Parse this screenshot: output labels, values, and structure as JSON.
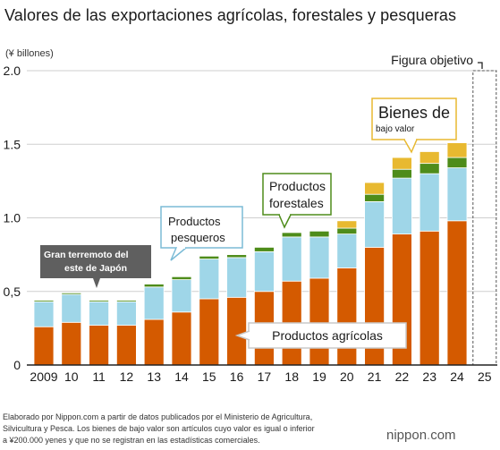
{
  "title": "Valores de las exportaciones agrícolas, forestales y pesqueras",
  "colors": {
    "agricultural": "#d45a00",
    "fishery": "#9fd6e8",
    "forestry": "#4e8c1a",
    "low_value": "#e8b930"
  },
  "chart_data": {
    "type": "bar",
    "stacked": true,
    "unit_label": "(¥ billones)",
    "categories": [
      "2009",
      "10",
      "11",
      "12",
      "13",
      "14",
      "15",
      "16",
      "17",
      "18",
      "19",
      "20",
      "21",
      "22",
      "23",
      "24",
      "25"
    ],
    "ylim": [
      0,
      2.0
    ],
    "yticks": [
      {
        "value": 0,
        "label": "0"
      },
      {
        "value": 0.5,
        "label": "0,5"
      },
      {
        "value": 1.0,
        "label": "1.0"
      },
      {
        "value": 1.5,
        "label": "1.5"
      },
      {
        "value": 2.0,
        "label": "2.0"
      }
    ],
    "series": [
      {
        "name": "Productos agrícolas",
        "color_key": "agricultural",
        "values": [
          0.26,
          0.29,
          0.27,
          0.27,
          0.31,
          0.36,
          0.45,
          0.46,
          0.5,
          0.57,
          0.59,
          0.66,
          0.8,
          0.89,
          0.91,
          0.98,
          null
        ]
      },
      {
        "name": "Productos pesqueros",
        "color_key": "fishery",
        "values": [
          0.17,
          0.19,
          0.16,
          0.16,
          0.22,
          0.22,
          0.27,
          0.27,
          0.27,
          0.3,
          0.28,
          0.23,
          0.31,
          0.38,
          0.39,
          0.36,
          null
        ]
      },
      {
        "name": "Productos forestales",
        "color_key": "forestry",
        "values": [
          0.01,
          0.01,
          0.01,
          0.01,
          0.02,
          0.02,
          0.02,
          0.02,
          0.03,
          0.03,
          0.04,
          0.04,
          0.05,
          0.06,
          0.07,
          0.07,
          null
        ]
      },
      {
        "name": "Bienes de bajo valor",
        "color_key": "low_value",
        "values": [
          0,
          0,
          0,
          0,
          0,
          0,
          0,
          0,
          0,
          0,
          0,
          0.05,
          0.08,
          0.08,
          0.08,
          0.1,
          null
        ]
      }
    ],
    "target": {
      "category": "25",
      "value": 2.0,
      "label": "Figura objetivo"
    },
    "annotations": {
      "earthquake": "Gran terremoto del este de Japón",
      "fishery_label_line1": "Productos",
      "fishery_label_line2": "pesqueros",
      "forestry_label_line1": "Productos",
      "forestry_label_line2": "forestales",
      "low_value_label_big": "Bienes de",
      "low_value_label_small": "bajo valor",
      "agricultural_label": "Productos agrícolas"
    }
  },
  "source": {
    "line1": "Elaborado por Nippon.com a partir de datos publicados por el Ministerio de Agricultura,",
    "line2": "Silvicultura y Pesca. Los bienes de bajo valor son artículos cuyo valor es igual o inferior",
    "line3": "a ¥200.000 yenes y que no se registran en las estadísticas comerciales."
  },
  "brand": {
    "name": "nippon",
    "dot": ".",
    "tld": "com"
  }
}
